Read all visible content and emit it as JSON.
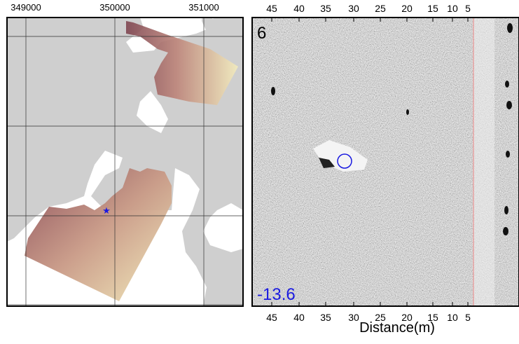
{
  "map": {
    "x_ticks": [
      "349000",
      "350000",
      "351000"
    ]
  },
  "sonar": {
    "panel_label": "6",
    "depth_label": "-13.6",
    "distance_ticks": [
      "45",
      "40",
      "35",
      "30",
      "25",
      "20",
      "15",
      "10",
      "5"
    ],
    "axis_label": "Distance(m)"
  }
}
